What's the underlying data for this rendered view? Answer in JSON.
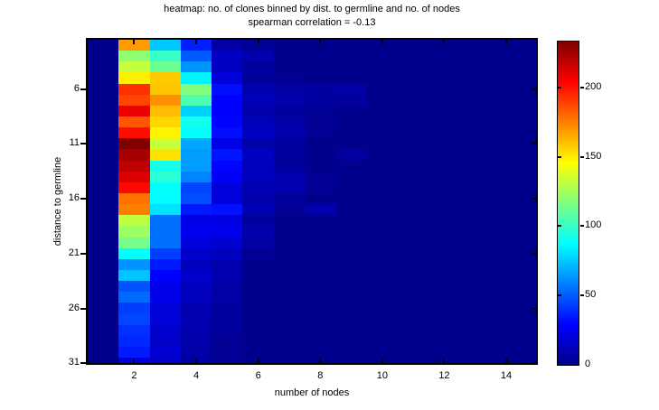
{
  "title": {
    "line1": "heatmap: no. of clones binned by dist. to germline and no. of nodes",
    "line2": "spearman correlation = -0.13"
  },
  "axes": {
    "xlabel": "number of nodes",
    "ylabel": "distance to germline",
    "x_tick_labels": [
      2,
      4,
      6,
      8,
      10,
      12,
      14
    ],
    "y_tick_labels": [
      6,
      11,
      16,
      21,
      26,
      31
    ]
  },
  "colorbar": {
    "tick_labels": [
      0,
      50,
      100,
      150,
      200
    ],
    "vmin": 0,
    "vmax": 233,
    "colormap": "jet",
    "bottom_color": "#00008C",
    "top_color": "#800000"
  },
  "chart_data": {
    "type": "heatmap",
    "title": "heatmap: no. of clones binned by dist. to germline and no. of nodes",
    "subtitle": "spearman correlation = -0.13",
    "xlabel": "number of nodes",
    "ylabel": "distance to germline",
    "x": [
      1,
      2,
      3,
      4,
      5,
      6,
      7,
      8,
      9,
      10,
      11,
      12,
      13,
      14,
      15
    ],
    "y": [
      2,
      3,
      4,
      5,
      6,
      7,
      8,
      9,
      10,
      11,
      12,
      13,
      14,
      15,
      16,
      17,
      18,
      19,
      20,
      21,
      22,
      23,
      24,
      25,
      26,
      27,
      28,
      29,
      30,
      31
    ],
    "xlim": [
      0.5,
      15.03
    ],
    "ylim": [
      1.5,
      31.08
    ],
    "x_ticks": [
      2,
      4,
      6,
      8,
      10,
      12,
      14
    ],
    "y_ticks": [
      6,
      11,
      16,
      21,
      26,
      31
    ],
    "vmin": 0,
    "vmax": 233,
    "colormap": "jet",
    "grid": false,
    "legend": "colorbar-right",
    "values": [
      [
        0,
        168,
        75,
        36,
        6,
        2,
        0,
        0,
        0,
        0,
        0,
        0,
        0,
        0,
        0
      ],
      [
        0,
        120,
        100,
        50,
        14,
        8,
        0,
        0,
        0,
        0,
        0,
        0,
        0,
        0,
        0
      ],
      [
        0,
        132,
        112,
        63,
        14,
        4,
        0,
        0,
        0,
        0,
        0,
        0,
        0,
        0,
        0
      ],
      [
        0,
        149,
        158,
        85,
        20,
        4,
        2,
        0,
        0,
        0,
        0,
        0,
        0,
        0,
        0
      ],
      [
        0,
        193,
        159,
        117,
        32,
        10,
        6,
        5,
        6,
        0,
        0,
        0,
        0,
        0,
        0
      ],
      [
        0,
        188,
        171,
        105,
        29,
        12,
        8,
        4,
        4,
        0,
        0,
        0,
        0,
        0,
        0
      ],
      [
        0,
        208,
        161,
        77,
        29,
        8,
        4,
        2,
        0,
        0,
        0,
        0,
        0,
        0,
        0
      ],
      [
        0,
        184,
        155,
        91,
        30,
        12,
        6,
        2,
        0,
        0,
        0,
        0,
        0,
        0,
        0
      ],
      [
        0,
        201,
        148,
        88,
        32,
        14,
        8,
        2,
        0,
        0,
        0,
        0,
        0,
        0,
        0
      ],
      [
        0,
        233,
        133,
        67,
        23,
        8,
        4,
        0,
        0,
        0,
        0,
        0,
        0,
        0,
        0
      ],
      [
        0,
        224,
        152,
        65,
        34,
        14,
        4,
        0,
        5,
        0,
        0,
        0,
        0,
        0,
        0
      ],
      [
        0,
        219,
        92,
        65,
        30,
        12,
        4,
        0,
        0,
        0,
        0,
        0,
        0,
        0,
        0
      ],
      [
        0,
        212,
        97,
        59,
        27,
        12,
        8,
        2,
        0,
        0,
        0,
        0,
        0,
        0,
        0
      ],
      [
        0,
        202,
        88,
        45,
        20,
        10,
        9,
        2,
        0,
        0,
        0,
        0,
        0,
        0,
        0
      ],
      [
        0,
        178,
        87,
        47,
        20,
        8,
        4,
        0,
        0,
        0,
        0,
        0,
        0,
        0,
        0
      ],
      [
        0,
        175,
        81,
        35,
        33,
        10,
        2,
        8,
        0,
        0,
        0,
        0,
        0,
        0,
        0
      ],
      [
        0,
        131,
        55,
        23,
        22,
        4,
        0,
        0,
        0,
        0,
        0,
        0,
        0,
        0,
        0
      ],
      [
        0,
        123,
        55,
        25,
        24,
        8,
        0,
        0,
        0,
        0,
        0,
        0,
        0,
        0,
        0
      ],
      [
        0,
        114,
        55,
        20,
        17,
        6,
        0,
        0,
        0,
        0,
        0,
        0,
        0,
        0,
        0
      ],
      [
        0,
        88,
        43,
        16,
        13,
        2,
        0,
        0,
        0,
        0,
        0,
        0,
        0,
        0,
        0
      ],
      [
        0,
        63,
        35,
        13,
        8,
        0,
        0,
        0,
        0,
        0,
        0,
        0,
        0,
        0,
        0
      ],
      [
        0,
        74,
        29,
        16,
        10,
        0,
        0,
        0,
        0,
        0,
        0,
        0,
        0,
        0,
        0
      ],
      [
        0,
        48,
        24,
        13,
        6,
        0,
        0,
        0,
        0,
        0,
        0,
        0,
        0,
        0,
        0
      ],
      [
        0,
        53,
        24,
        12,
        6,
        0,
        0,
        0,
        0,
        0,
        0,
        0,
        0,
        0,
        0
      ],
      [
        0,
        43,
        19,
        9,
        4,
        0,
        0,
        0,
        0,
        0,
        0,
        0,
        0,
        0,
        0
      ],
      [
        0,
        45,
        19,
        9,
        4,
        0,
        0,
        0,
        0,
        0,
        0,
        0,
        0,
        0,
        0
      ],
      [
        0,
        40,
        17,
        8,
        4,
        0,
        0,
        0,
        0,
        0,
        0,
        0,
        0,
        0,
        0
      ],
      [
        0,
        38,
        15,
        7,
        2,
        0,
        0,
        0,
        0,
        0,
        0,
        0,
        0,
        0,
        0
      ],
      [
        0,
        35,
        18,
        7,
        2,
        0,
        0,
        0,
        0,
        0,
        0,
        0,
        0,
        0,
        0
      ],
      [
        0,
        20,
        15,
        5,
        2,
        0,
        0,
        0,
        0,
        0,
        0,
        0,
        0,
        0,
        0
      ]
    ]
  }
}
